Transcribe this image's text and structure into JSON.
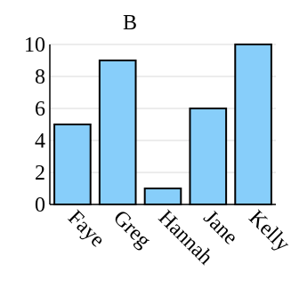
{
  "chart_data": {
    "type": "bar",
    "title": "B",
    "categories": [
      "Faye",
      "Greg",
      "Hannah",
      "Jane",
      "Kelly"
    ],
    "values": [
      5,
      9,
      1,
      6,
      10
    ],
    "xlabel": "",
    "ylabel": "",
    "ylim": [
      0,
      10
    ],
    "yticks": [
      0,
      2,
      4,
      6,
      8,
      10
    ],
    "grid": true,
    "bar_color": "#87cefa",
    "edge_color": "#000000"
  }
}
